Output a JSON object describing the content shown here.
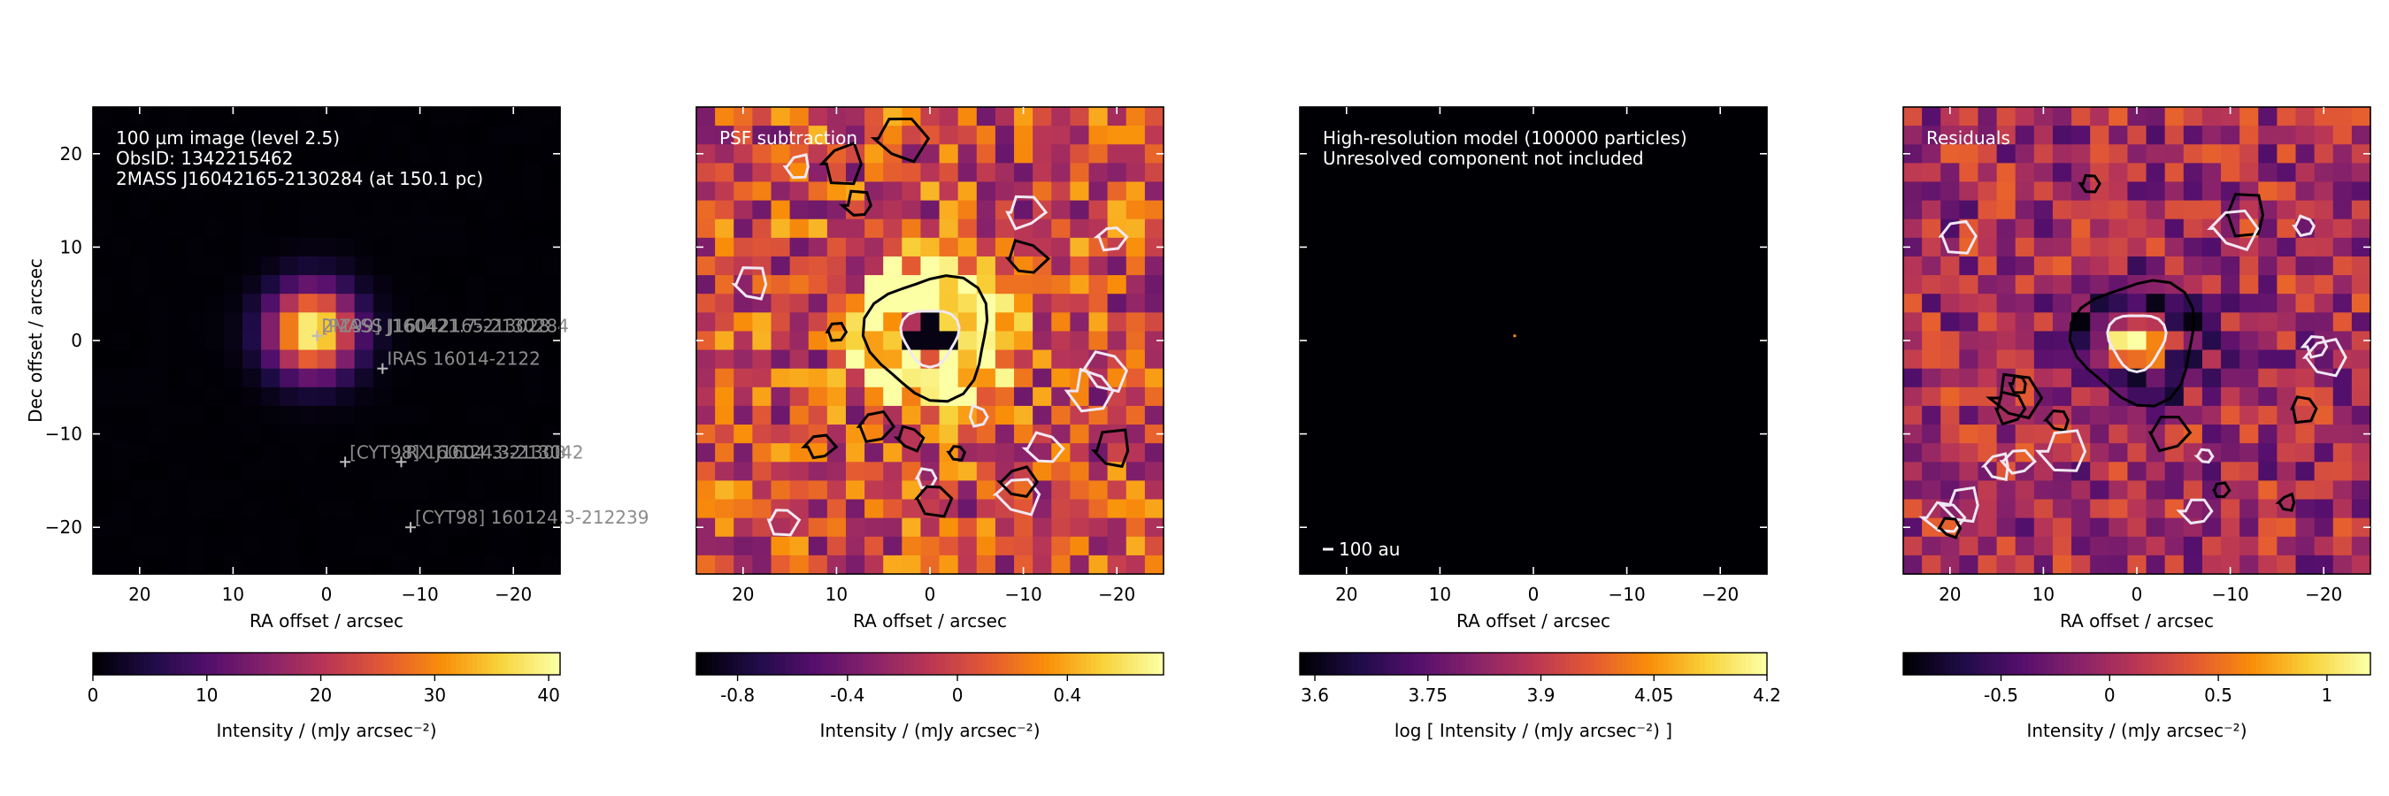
{
  "chart_data": [
    {
      "type": "heatmap",
      "panel": "observed",
      "annotation_lines": [
        "100 µm image (level 2.5)",
        "ObsID: 1342215462",
        "2MASS J16042165-2130284 (at 150.1 pc)"
      ],
      "xlabel": "RA offset / arcsec",
      "ylabel": "Dec offset / arcsec",
      "xlim": [
        25,
        -25
      ],
      "ylim": [
        -25,
        25
      ],
      "xticks": [
        20,
        10,
        0,
        -10,
        -20
      ],
      "yticks": [
        20,
        10,
        0,
        -10,
        -20
      ],
      "tick_labels_x": [
        "20",
        "10",
        "0",
        "−10",
        "−20"
      ],
      "tick_labels_y": [
        "20",
        "10",
        "0",
        "−10",
        "−20"
      ],
      "source": {
        "ra": 1.5,
        "dec": 1.0,
        "peak": 41,
        "fwhm_arcsec": 7.5
      },
      "sources": [
        {
          "label": "2MASS J16042165-2130284",
          "ra": 1.0,
          "dec": 0.5
        },
        {
          "label": "[PZ99] J160421.7-213028",
          "ra": 1.0,
          "dec": 0.5
        },
        {
          "label": "IRAS 16014-2122",
          "ra": -6.0,
          "dec": -3.0
        },
        {
          "label": "[CYT98] 160124.3-213042",
          "ra": -2.0,
          "dec": -13.0
        },
        {
          "label": "RX J1604.3-2130B",
          "ra": -8.0,
          "dec": -13.0
        },
        {
          "label": "[CYT98] 160124.3-212239",
          "ra": -9.0,
          "dec": -20.0
        }
      ],
      "source_label_text": "2MASS J16042165-2130284",
      "colorbar": {
        "label": "Intensity / (mJy arcsec⁻²)",
        "min": 0,
        "max": 41,
        "ticks": [
          0,
          10,
          20,
          30,
          40
        ],
        "tick_labels": [
          "0",
          "10",
          "20",
          "30",
          "40"
        ]
      }
    },
    {
      "type": "heatmap",
      "panel": "psf_subtraction",
      "annotation_lines": [
        "PSF subtraction"
      ],
      "xlabel": "RA offset / arcsec",
      "xlim": [
        25,
        -25
      ],
      "ylim": [
        -25,
        25
      ],
      "xticks": [
        20,
        10,
        0,
        -10,
        -20
      ],
      "tick_labels_x": [
        "20",
        "10",
        "0",
        "−10",
        "−20"
      ],
      "ring": {
        "ra": 0,
        "dec": 0.5,
        "amplitude": 0.75,
        "inner_hole_value": -0.9
      },
      "contours": {
        "black": "positive",
        "white": "negative"
      },
      "colorbar": {
        "label": "Intensity / (mJy arcsec⁻²)",
        "min": -0.95,
        "max": 0.75,
        "ticks": [
          -0.8,
          -0.4,
          0,
          0.4
        ],
        "tick_labels": [
          "-0.8",
          "-0.4",
          "0",
          "0.4"
        ]
      }
    },
    {
      "type": "heatmap",
      "panel": "model",
      "annotation_lines": [
        "High-resolution model (100000 particles)",
        "Unresolved component not included"
      ],
      "scalebar_label": "100 au",
      "xlabel": "RA offset / arcsec",
      "xlim": [
        25,
        -25
      ],
      "ylim": [
        -25,
        25
      ],
      "xticks": [
        20,
        10,
        0,
        -10,
        -20
      ],
      "tick_labels_x": [
        "20",
        "10",
        "0",
        "−10",
        "−20"
      ],
      "model_point": {
        "ra": 2.0,
        "dec": 0.5
      },
      "colorbar": {
        "label": "log [ Intensity / (mJy arcsec⁻²) ]",
        "min": 3.58,
        "max": 4.2,
        "ticks": [
          3.6,
          3.75,
          3.9,
          4.05,
          4.2
        ],
        "tick_labels": [
          "3.6",
          "3.75",
          "3.9",
          "4.05",
          "4.2"
        ]
      }
    },
    {
      "type": "heatmap",
      "panel": "residuals",
      "annotation_lines": [
        "Residuals"
      ],
      "xlabel": "RA offset / arcsec",
      "xlim": [
        25,
        -25
      ],
      "ylim": [
        -25,
        25
      ],
      "xticks": [
        20,
        10,
        0,
        -10,
        -20
      ],
      "tick_labels_x": [
        "20",
        "10",
        "0",
        "−10",
        "−20"
      ],
      "blob": {
        "ra": 0,
        "dec": 0,
        "amplitude": 1.2,
        "negative_halo": -0.9
      },
      "contours": {
        "black": "positive",
        "white": "negative"
      },
      "colorbar": {
        "label": "Intensity / (mJy arcsec⁻²)",
        "min": -0.95,
        "max": 1.2,
        "ticks": [
          -0.5,
          0,
          0.5,
          1
        ],
        "tick_labels": [
          "-0.5",
          "0",
          "0.5",
          "1"
        ]
      }
    }
  ],
  "colors": {
    "inferno": [
      "#000004",
      "#1f0c48",
      "#550f6d",
      "#88226a",
      "#ba3655",
      "#e35933",
      "#f98e09",
      "#f8d23a",
      "#fcffa4"
    ]
  }
}
